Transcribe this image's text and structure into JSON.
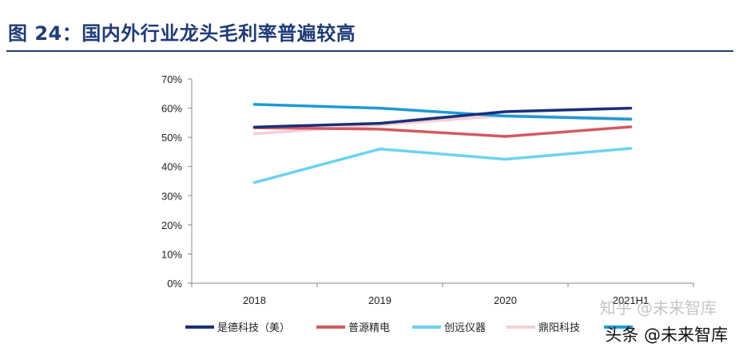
{
  "header": {
    "title": "图 24：国内外行业龙头毛利率普遍较高"
  },
  "chart_data": {
    "type": "line",
    "title": "",
    "xlabel": "",
    "ylabel": "",
    "categories": [
      "2018",
      "2019",
      "2020",
      "2021H1"
    ],
    "ylim": [
      0,
      70
    ],
    "yticks": [
      "0%",
      "10%",
      "20%",
      "30%",
      "40%",
      "50%",
      "60%",
      "70%"
    ],
    "grid": false,
    "legend_position": "bottom",
    "series": [
      {
        "name": "是德科技（美）",
        "color": "#1a2f78",
        "values": [
          53.5,
          54.8,
          58.8,
          60.0
        ]
      },
      {
        "name": "普源精电",
        "color": "#d35a60",
        "values": [
          53.3,
          52.8,
          50.3,
          53.6
        ]
      },
      {
        "name": "创远仪器",
        "color": "#6ad3f0",
        "values": [
          34.5,
          46.0,
          42.5,
          46.2
        ]
      },
      {
        "name": "鼎阳科技",
        "color": "#f5cfd3",
        "values": [
          51.2,
          54.2,
          57.5,
          56.5
        ]
      },
      {
        "name": "",
        "color": "#1e9ad6",
        "values": [
          61.3,
          60.0,
          57.3,
          56.2
        ]
      }
    ]
  },
  "watermarks": {
    "zhihu": "知乎 @未来智库",
    "toutiao": "头条 @未来智库"
  }
}
